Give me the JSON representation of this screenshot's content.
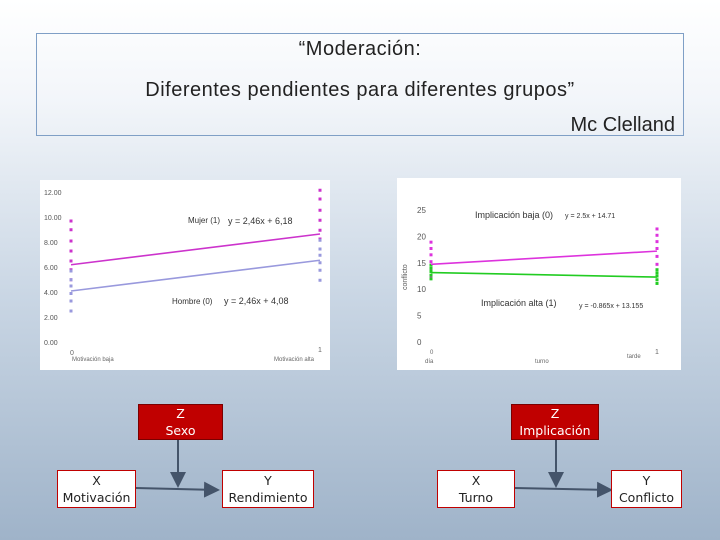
{
  "title": {
    "line1": "“Moderación:",
    "line2": "Diferentes pendientes para diferentes grupos”",
    "author": "Mc Clelland"
  },
  "chart_data": [
    {
      "type": "scatter",
      "ylim": [
        0,
        12
      ],
      "y_ticks": [
        "0.00",
        "2.00",
        "4.00",
        "6.00",
        "8.00",
        "10.00",
        "12.00"
      ],
      "x_tick_labels": [
        "0",
        "1"
      ],
      "x_category_labels": [
        "Motivación baja",
        "Motivación alta"
      ],
      "series": [
        {
          "name": "Mujer (1)",
          "equation": "y = 2,46x + 6,18",
          "color": "#cc33cc",
          "line": [
            [
              0,
              6.18
            ],
            [
              1,
              8.64
            ]
          ]
        },
        {
          "name": "Hombre (0)",
          "equation": "y = 2,46x + 4,08",
          "color": "#9999dd",
          "line": [
            [
              0,
              4.08
            ],
            [
              1,
              6.54
            ]
          ]
        }
      ]
    },
    {
      "type": "scatter",
      "ylim": [
        0,
        25
      ],
      "y_ticks": [
        "0",
        "5",
        "10",
        "15",
        "20",
        "25"
      ],
      "ylabel": "conflicto",
      "x_tick_labels": [
        "0",
        "1"
      ],
      "x_category_labels": [
        "día",
        "turno",
        "tarde"
      ],
      "series": [
        {
          "name": "Implicación baja (0)",
          "equation": "y = 2.5x + 14.71",
          "color": "#dd33dd",
          "line": [
            [
              0,
              14.71
            ],
            [
              1,
              17.21
            ]
          ]
        },
        {
          "name": "Implicación alta (1)",
          "equation": "y = -0.865x + 13.155",
          "color": "#22cc22",
          "line": [
            [
              0,
              13.16
            ],
            [
              1,
              12.29
            ]
          ]
        }
      ]
    }
  ],
  "diagram": {
    "left": {
      "moderator": [
        "Z",
        "Sexo"
      ],
      "x": [
        "X",
        "Motivación"
      ],
      "y": [
        "Y",
        "Rendimiento"
      ]
    },
    "right": {
      "moderator": [
        "Z",
        "Implicación"
      ],
      "x": [
        "X",
        "Turno"
      ],
      "y": [
        "Y",
        "Conflicto"
      ]
    }
  },
  "colors": {
    "box_fill_moderator": "#c00000",
    "box_border": "#c00000",
    "arrow": "#44546a"
  }
}
